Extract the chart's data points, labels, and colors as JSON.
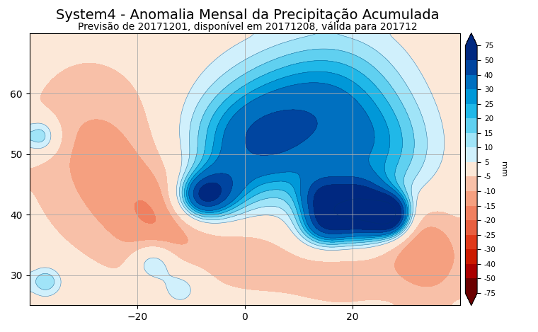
{
  "title": "System4 - Anomalia Mensal da Precipitação Acumulada",
  "subtitle": "Previsão de 20171201, disponível em 20171208, válida para 201712",
  "lon_min": -40,
  "lon_max": 40,
  "lat_min": 25,
  "lat_max": 70,
  "levels": [
    -75,
    -50,
    -40,
    -30,
    -25,
    -20,
    -15,
    -10,
    -5,
    5,
    10,
    15,
    20,
    25,
    30,
    40,
    50,
    75
  ],
  "colorbar_label": "mm",
  "title_fontsize": 14,
  "subtitle_fontsize": 10,
  "figsize": [
    7.6,
    4.69
  ],
  "dpi": 100,
  "gridline_color": "#aaaaaa",
  "coast_color": "#444444",
  "xticks": [
    -20,
    0,
    20
  ],
  "yticks": [
    30,
    40,
    50,
    60
  ],
  "colors_neg": [
    "#6b0000",
    "#aa0000",
    "#cc1a00",
    "#e03a1a",
    "#e86040",
    "#f08060",
    "#f5a080",
    "#f8c0a8",
    "#fce0d0"
  ],
  "colors_pos": [
    "#d0f0fc",
    "#a0e4f8",
    "#60d0f0",
    "#20b8e8",
    "#0098d8",
    "#0070c0",
    "#0045a0",
    "#002880",
    "#00104a"
  ]
}
